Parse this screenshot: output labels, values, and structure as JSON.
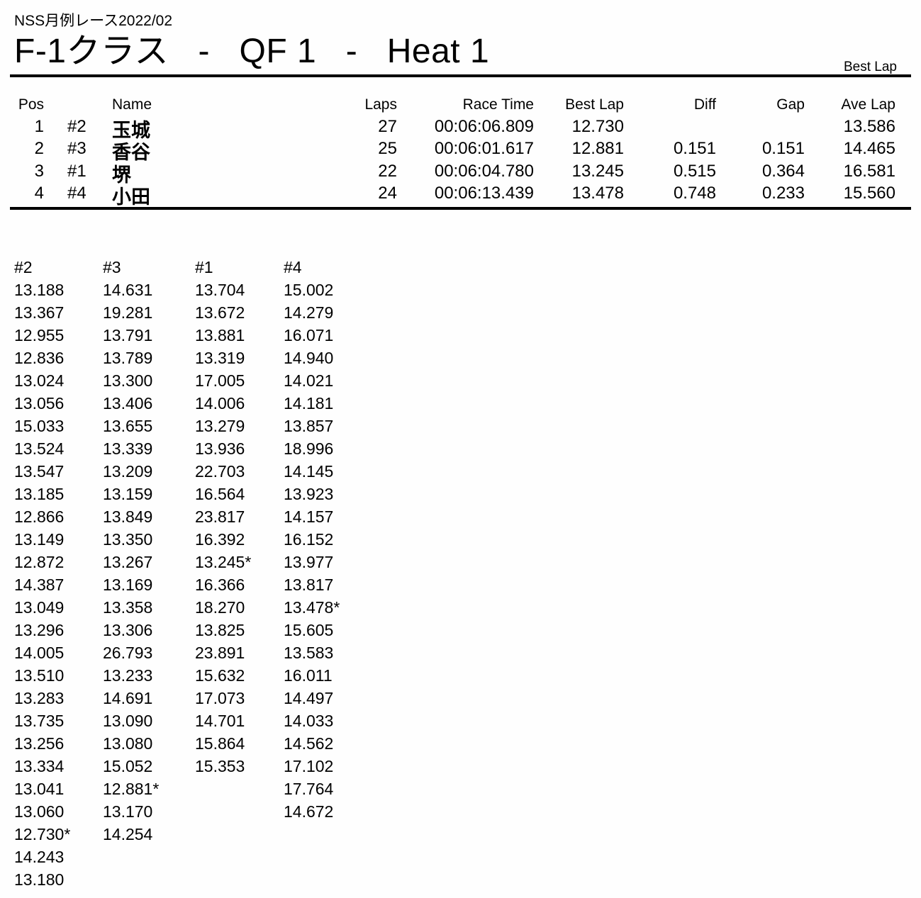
{
  "meta": {
    "event": "NSS月例レース2022/02",
    "title": "F-1クラス   -   QF 1   -   Heat 1",
    "corner_label": "Best Lap"
  },
  "results": {
    "headers": {
      "pos": "Pos",
      "name": "Name",
      "laps": "Laps",
      "race_time": "Race Time",
      "best_lap": "Best Lap",
      "diff": "Diff",
      "gap": "Gap",
      "ave_lap": "Ave Lap"
    },
    "rows": [
      {
        "pos": "1",
        "car": "#2",
        "name": "玉城",
        "laps": "27",
        "race_time": "00:06:06.809",
        "best_lap": "12.730",
        "diff": "",
        "gap": "",
        "ave_lap": "13.586"
      },
      {
        "pos": "2",
        "car": "#3",
        "name": "香谷",
        "laps": "25",
        "race_time": "00:06:01.617",
        "best_lap": "12.881",
        "diff": "0.151",
        "gap": "0.151",
        "ave_lap": "14.465"
      },
      {
        "pos": "3",
        "car": "#1",
        "name": "堺",
        "laps": "22",
        "race_time": "00:06:04.780",
        "best_lap": "13.245",
        "diff": "0.515",
        "gap": "0.364",
        "ave_lap": "16.581"
      },
      {
        "pos": "4",
        "car": "#4",
        "name": "小田",
        "laps": "24",
        "race_time": "00:06:13.439",
        "best_lap": "13.478",
        "diff": "0.748",
        "gap": "0.233",
        "ave_lap": "15.560"
      }
    ]
  },
  "lap_chart": {
    "columns": [
      {
        "car": "#2",
        "laps": [
          "13.188",
          "13.367",
          "12.955",
          "12.836",
          "13.024",
          "13.056",
          "15.033",
          "13.524",
          "13.547",
          "13.185",
          "12.866",
          "13.149",
          "12.872",
          "14.387",
          "13.049",
          "13.296",
          "14.005",
          "13.510",
          "13.283",
          "13.735",
          "13.256",
          "13.334",
          "13.041",
          "13.060",
          "12.730*",
          "14.243",
          "13.180"
        ]
      },
      {
        "car": "#3",
        "laps": [
          "14.631",
          "19.281",
          "13.791",
          "13.789",
          "13.300",
          "13.406",
          "13.655",
          "13.339",
          "13.209",
          "13.159",
          "13.849",
          "13.350",
          "13.267",
          "13.169",
          "13.358",
          "13.306",
          "26.793",
          "13.233",
          "14.691",
          "13.090",
          "13.080",
          "15.052",
          "12.881*",
          "13.170",
          "14.254"
        ]
      },
      {
        "car": "#1",
        "laps": [
          "13.704",
          "13.672",
          "13.881",
          "13.319",
          "17.005",
          "14.006",
          "13.279",
          "13.936",
          "22.703",
          "16.564",
          "23.817",
          "16.392",
          "13.245*",
          "16.366",
          "18.270",
          "13.825",
          "23.891",
          "15.632",
          "17.073",
          "14.701",
          "15.864",
          "15.353"
        ]
      },
      {
        "car": "#4",
        "laps": [
          "15.002",
          "14.279",
          "16.071",
          "14.940",
          "14.021",
          "14.181",
          "13.857",
          "18.996",
          "14.145",
          "13.923",
          "14.157",
          "16.152",
          "13.977",
          "13.817",
          "13.478*",
          "15.605",
          "13.583",
          "16.011",
          "14.497",
          "14.033",
          "14.562",
          "17.102",
          "17.764",
          "14.672"
        ]
      }
    ]
  }
}
